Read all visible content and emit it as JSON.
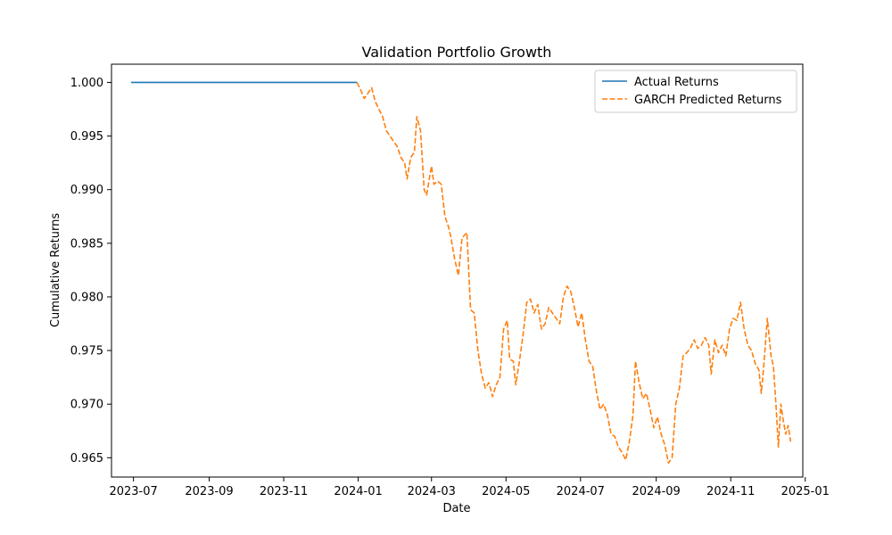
{
  "chart_data": {
    "type": "line",
    "title": "Validation Portfolio Growth",
    "xlabel": "Date",
    "ylabel": "Cumulative Returns",
    "xlim": [
      "2023-06-13",
      "2024-12-30"
    ],
    "ylim": [
      0.9632,
      1.0017
    ],
    "x_ticks": [
      "2023-07",
      "2023-09",
      "2023-11",
      "2024-01",
      "2024-03",
      "2024-05",
      "2024-07",
      "2024-09",
      "2024-11",
      "2025-01"
    ],
    "y_ticks": [
      1.0,
      0.995,
      0.99,
      0.985,
      0.98,
      0.975,
      0.97,
      0.965
    ],
    "y_tick_labels": [
      "1.000",
      "0.995",
      "0.990",
      "0.985",
      "0.980",
      "0.975",
      "0.970",
      "0.965"
    ],
    "grid": false,
    "legend": "top-right",
    "series": [
      {
        "name": "Actual Returns",
        "color": "#1f77b4",
        "style": "solid",
        "points": [
          [
            "2023-06-29",
            1.0
          ],
          [
            "2023-12-31",
            1.0
          ]
        ]
      },
      {
        "name": "GARCH Predicted Returns",
        "color": "#ff7f0e",
        "style": "dashed",
        "points": [
          [
            "2023-12-31",
            1.0
          ],
          [
            "2024-01-03",
            0.9993
          ],
          [
            "2024-01-06",
            0.9985
          ],
          [
            "2024-01-09",
            0.999
          ],
          [
            "2024-01-12",
            0.9995
          ],
          [
            "2024-01-15",
            0.9982
          ],
          [
            "2024-01-18",
            0.9975
          ],
          [
            "2024-01-21",
            0.9968
          ],
          [
            "2024-01-24",
            0.9955
          ],
          [
            "2024-01-27",
            0.995
          ],
          [
            "2024-01-30",
            0.9945
          ],
          [
            "2024-02-02",
            0.994
          ],
          [
            "2024-02-05",
            0.993
          ],
          [
            "2024-02-08",
            0.9925
          ],
          [
            "2024-02-10",
            0.991
          ],
          [
            "2024-02-13",
            0.993
          ],
          [
            "2024-02-16",
            0.9935
          ],
          [
            "2024-02-18",
            0.9968
          ],
          [
            "2024-02-21",
            0.9955
          ],
          [
            "2024-02-24",
            0.99
          ],
          [
            "2024-02-26",
            0.9895
          ],
          [
            "2024-03-01",
            0.9922
          ],
          [
            "2024-03-03",
            0.9905
          ],
          [
            "2024-03-06",
            0.9908
          ],
          [
            "2024-03-09",
            0.9905
          ],
          [
            "2024-03-12",
            0.9875
          ],
          [
            "2024-03-15",
            0.9865
          ],
          [
            "2024-03-17",
            0.9855
          ],
          [
            "2024-03-20",
            0.9835
          ],
          [
            "2024-03-23",
            0.982
          ],
          [
            "2024-03-26",
            0.9855
          ],
          [
            "2024-03-30",
            0.986
          ],
          [
            "2024-04-02",
            0.9788
          ],
          [
            "2024-04-05",
            0.9785
          ],
          [
            "2024-04-08",
            0.975
          ],
          [
            "2024-04-11",
            0.9728
          ],
          [
            "2024-04-14",
            0.9715
          ],
          [
            "2024-04-17",
            0.972
          ],
          [
            "2024-04-20",
            0.9707
          ],
          [
            "2024-04-23",
            0.9718
          ],
          [
            "2024-04-26",
            0.9725
          ],
          [
            "2024-04-29",
            0.977
          ],
          [
            "2024-05-02",
            0.9778
          ],
          [
            "2024-05-04",
            0.9742
          ],
          [
            "2024-05-07",
            0.974
          ],
          [
            "2024-05-09",
            0.9718
          ],
          [
            "2024-05-12",
            0.974
          ],
          [
            "2024-05-15",
            0.9765
          ],
          [
            "2024-05-18",
            0.9795
          ],
          [
            "2024-05-21",
            0.9798
          ],
          [
            "2024-05-24",
            0.9785
          ],
          [
            "2024-05-27",
            0.9793
          ],
          [
            "2024-05-30",
            0.977
          ],
          [
            "2024-06-02",
            0.9775
          ],
          [
            "2024-06-05",
            0.979
          ],
          [
            "2024-06-08",
            0.9785
          ],
          [
            "2024-06-11",
            0.978
          ],
          [
            "2024-06-14",
            0.9775
          ],
          [
            "2024-06-17",
            0.98
          ],
          [
            "2024-06-20",
            0.981
          ],
          [
            "2024-06-23",
            0.9805
          ],
          [
            "2024-06-26",
            0.979
          ],
          [
            "2024-06-29",
            0.9772
          ],
          [
            "2024-07-02",
            0.9785
          ],
          [
            "2024-07-05",
            0.976
          ],
          [
            "2024-07-08",
            0.974
          ],
          [
            "2024-07-11",
            0.9735
          ],
          [
            "2024-07-14",
            0.9712
          ],
          [
            "2024-07-17",
            0.9695
          ],
          [
            "2024-07-20",
            0.97
          ],
          [
            "2024-07-23",
            0.969
          ],
          [
            "2024-07-26",
            0.9672
          ],
          [
            "2024-07-29",
            0.967
          ],
          [
            "2024-08-01",
            0.966
          ],
          [
            "2024-08-04",
            0.9655
          ],
          [
            "2024-08-07",
            0.9648
          ],
          [
            "2024-08-10",
            0.9665
          ],
          [
            "2024-08-13",
            0.969
          ],
          [
            "2024-08-15",
            0.974
          ],
          [
            "2024-08-18",
            0.972
          ],
          [
            "2024-08-21",
            0.9705
          ],
          [
            "2024-08-24",
            0.971
          ],
          [
            "2024-08-27",
            0.9695
          ],
          [
            "2024-08-30",
            0.9678
          ],
          [
            "2024-09-02",
            0.9688
          ],
          [
            "2024-09-05",
            0.9672
          ],
          [
            "2024-09-08",
            0.9662
          ],
          [
            "2024-09-11",
            0.9645
          ],
          [
            "2024-09-14",
            0.965
          ],
          [
            "2024-09-17",
            0.97
          ],
          [
            "2024-09-20",
            0.9715
          ],
          [
            "2024-09-23",
            0.9745
          ],
          [
            "2024-09-26",
            0.9748
          ],
          [
            "2024-09-29",
            0.9752
          ],
          [
            "2024-10-02",
            0.976
          ],
          [
            "2024-10-05",
            0.9752
          ],
          [
            "2024-10-08",
            0.9755
          ],
          [
            "2024-10-11",
            0.9762
          ],
          [
            "2024-10-14",
            0.9755
          ],
          [
            "2024-10-16",
            0.9728
          ],
          [
            "2024-10-19",
            0.976
          ],
          [
            "2024-10-22",
            0.9748
          ],
          [
            "2024-10-25",
            0.9755
          ],
          [
            "2024-10-28",
            0.9745
          ],
          [
            "2024-10-31",
            0.977
          ],
          [
            "2024-11-03",
            0.978
          ],
          [
            "2024-11-06",
            0.9778
          ],
          [
            "2024-11-09",
            0.9795
          ],
          [
            "2024-11-12",
            0.977
          ],
          [
            "2024-11-15",
            0.9755
          ],
          [
            "2024-11-18",
            0.975
          ],
          [
            "2024-11-21",
            0.9738
          ],
          [
            "2024-11-24",
            0.9732
          ],
          [
            "2024-11-26",
            0.971
          ],
          [
            "2024-11-28",
            0.9735
          ],
          [
            "2024-12-01",
            0.978
          ],
          [
            "2024-12-04",
            0.9745
          ],
          [
            "2024-12-06",
            0.9735
          ],
          [
            "2024-12-08",
            0.97
          ],
          [
            "2024-12-10",
            0.966
          ],
          [
            "2024-12-12",
            0.97
          ],
          [
            "2024-12-14",
            0.9685
          ],
          [
            "2024-12-16",
            0.9672
          ],
          [
            "2024-12-18",
            0.968
          ],
          [
            "2024-12-20",
            0.9665
          ]
        ]
      }
    ]
  }
}
